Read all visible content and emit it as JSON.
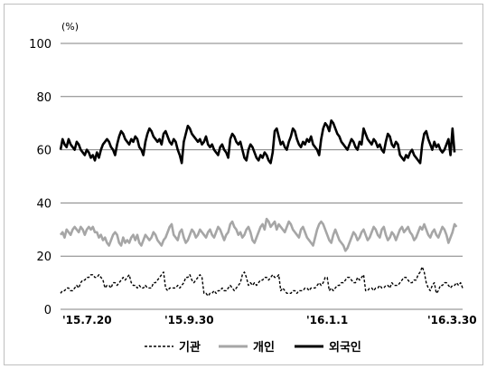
{
  "chart_data": {
    "type": "line",
    "unit_label": "(%)",
    "ylim": [
      0,
      100
    ],
    "y_ticks": [
      "0",
      "20",
      "40",
      "60",
      "80",
      "100"
    ],
    "x_ticks": [
      "'15.7.20",
      "'15.9.30",
      "'16.1.1",
      "'16.3.30"
    ],
    "grid": "horizontal",
    "legend_position": "bottom",
    "series": [
      {
        "name": "기관",
        "color": "#000000",
        "style": "dashed",
        "values": [
          6,
          7,
          7,
          8,
          8,
          7,
          7,
          8,
          9,
          8,
          10,
          11,
          11,
          12,
          12,
          13,
          13,
          12,
          12,
          13,
          12,
          11,
          8,
          9,
          9,
          8,
          10,
          10,
          9,
          10,
          11,
          12,
          11,
          12,
          13,
          10,
          9,
          9,
          8,
          9,
          8,
          8,
          9,
          8,
          8,
          8,
          10,
          10,
          11,
          12,
          13,
          14,
          8,
          7,
          8,
          8,
          8,
          8,
          9,
          8,
          9,
          10,
          12,
          12,
          13,
          11,
          10,
          11,
          12,
          13,
          12,
          6,
          6,
          5,
          6,
          6,
          7,
          6,
          7,
          7,
          8,
          7,
          7,
          8,
          9,
          8,
          7,
          8,
          9,
          10,
          13,
          14,
          12,
          9,
          10,
          9,
          10,
          9,
          10,
          11,
          11,
          12,
          12,
          11,
          12,
          13,
          12,
          12,
          13,
          7,
          8,
          7,
          6,
          6,
          6,
          7,
          7,
          6,
          7,
          7,
          7,
          8,
          8,
          7,
          8,
          8,
          8,
          9,
          10,
          9,
          10,
          12,
          12,
          7,
          8,
          7,
          8,
          9,
          9,
          10,
          10,
          11,
          12,
          12,
          11,
          10,
          10,
          12,
          11,
          12,
          13,
          7,
          7,
          8,
          8,
          7,
          8,
          8,
          9,
          8,
          8,
          9,
          9,
          8,
          10,
          9,
          9,
          9,
          10,
          11,
          12,
          12,
          11,
          10,
          10,
          11,
          11,
          13,
          14,
          16,
          14,
          10,
          8,
          7,
          9,
          10,
          6,
          7,
          9,
          9,
          10,
          10,
          9,
          8,
          9,
          9,
          10,
          9,
          10,
          8
        ]
      },
      {
        "name": "개인",
        "color": "#a6a6a6",
        "style": "solid",
        "values": [
          28,
          29,
          27,
          30,
          29,
          28,
          30,
          31,
          30,
          29,
          31,
          30,
          28,
          30,
          31,
          30,
          31,
          29,
          29,
          27,
          28,
          26,
          27,
          25,
          24,
          26,
          28,
          29,
          28,
          25,
          24,
          27,
          25,
          26,
          25,
          27,
          28,
          26,
          28,
          25,
          24,
          26,
          28,
          27,
          26,
          27,
          29,
          28,
          26,
          25,
          24,
          26,
          27,
          29,
          31,
          32,
          28,
          27,
          26,
          29,
          30,
          27,
          25,
          26,
          28,
          30,
          29,
          27,
          28,
          30,
          29,
          28,
          27,
          29,
          30,
          28,
          27,
          29,
          31,
          30,
          28,
          26,
          28,
          29,
          32,
          33,
          31,
          30,
          28,
          29,
          27,
          28,
          30,
          31,
          29,
          26,
          25,
          27,
          29,
          31,
          32,
          30,
          34,
          33,
          31,
          32,
          33,
          30,
          32,
          31,
          30,
          29,
          31,
          33,
          32,
          30,
          29,
          28,
          27,
          30,
          31,
          29,
          27,
          26,
          25,
          24,
          27,
          30,
          32,
          33,
          32,
          30,
          28,
          26,
          25,
          28,
          30,
          28,
          26,
          25,
          24,
          22,
          23,
          25,
          27,
          29,
          28,
          26,
          27,
          29,
          30,
          28,
          26,
          27,
          29,
          31,
          30,
          28,
          27,
          30,
          31,
          28,
          26,
          27,
          29,
          28,
          26,
          28,
          30,
          31,
          29,
          30,
          31,
          29,
          28,
          26,
          27,
          29,
          31,
          30,
          32,
          30,
          28,
          27,
          29,
          30,
          28,
          27,
          29,
          31,
          30,
          28,
          25,
          27,
          29,
          32,
          31
        ]
      },
      {
        "name": "외국인",
        "color": "#000000",
        "style": "solid-thick",
        "values": [
          60,
          64,
          62,
          61,
          64,
          62,
          61,
          60,
          63,
          62,
          60,
          59,
          58,
          60,
          59,
          57,
          58,
          56,
          59,
          57,
          60,
          62,
          63,
          64,
          63,
          61,
          60,
          58,
          62,
          65,
          67,
          66,
          64,
          63,
          62,
          64,
          63,
          65,
          64,
          61,
          60,
          58,
          63,
          66,
          68,
          67,
          65,
          64,
          63,
          64,
          62,
          66,
          67,
          65,
          63,
          62,
          64,
          63,
          60,
          58,
          55,
          63,
          66,
          69,
          68,
          66,
          65,
          64,
          63,
          64,
          62,
          63,
          65,
          62,
          61,
          62,
          60,
          59,
          58,
          61,
          62,
          60,
          59,
          57,
          64,
          66,
          65,
          63,
          62,
          63,
          60,
          57,
          56,
          60,
          62,
          61,
          59,
          57,
          56,
          58,
          57,
          59,
          58,
          56,
          55,
          59,
          67,
          68,
          65,
          62,
          63,
          61,
          60,
          63,
          65,
          68,
          67,
          64,
          62,
          61,
          63,
          62,
          64,
          63,
          65,
          62,
          61,
          60,
          58,
          64,
          68,
          70,
          69,
          67,
          71,
          70,
          68,
          66,
          65,
          63,
          62,
          61,
          60,
          62,
          64,
          63,
          61,
          60,
          63,
          62,
          68,
          66,
          64,
          63,
          62,
          64,
          63,
          61,
          62,
          60,
          59,
          63,
          66,
          65,
          62,
          61,
          63,
          62,
          58,
          57,
          56,
          58,
          57,
          59,
          60,
          58,
          57,
          56,
          55,
          62,
          66,
          67,
          64,
          62,
          60,
          63,
          61,
          62,
          60,
          59,
          60,
          62,
          64,
          58,
          68,
          59
        ]
      }
    ]
  }
}
